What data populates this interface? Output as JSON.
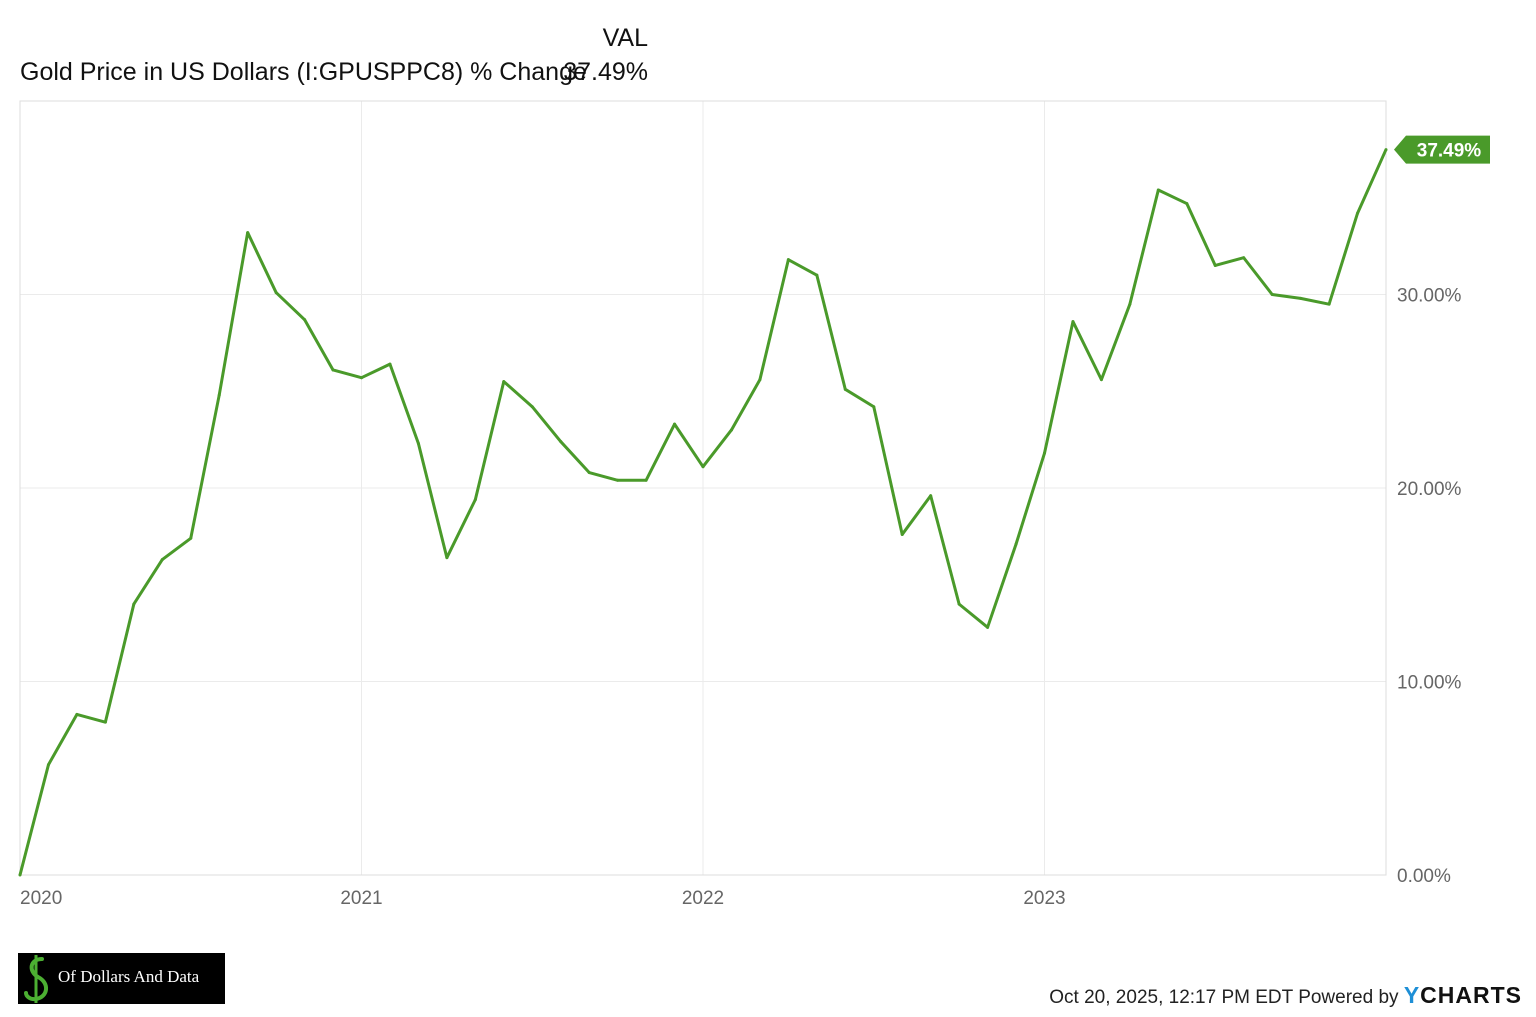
{
  "legend": {
    "column_header": "VAL",
    "series_name": "Gold Price in US Dollars (I:GPUSPPC8) % Change",
    "series_value": "37.49%"
  },
  "chart_data": {
    "type": "line",
    "title": "",
    "xlabel": "",
    "ylabel": "",
    "x_ticks": [
      "2020",
      "2021",
      "2022",
      "2023"
    ],
    "y_ticks": [
      "0.00%",
      "10.00%",
      "20.00%",
      "30.00%"
    ],
    "ylim": [
      0,
      40
    ],
    "xlim": [
      "2020-01",
      "2024-01"
    ],
    "grid": true,
    "y_axis_side": "right",
    "series": [
      {
        "name": "Gold Price in US Dollars (I:GPUSPPC8) % Change",
        "color": "#4a9a2a",
        "end_label": "37.49%",
        "x": [
          "2020-01",
          "2020-02",
          "2020-03",
          "2020-04",
          "2020-05",
          "2020-06",
          "2020-07",
          "2020-08",
          "2020-09",
          "2020-10",
          "2020-11",
          "2020-12",
          "2021-01",
          "2021-02",
          "2021-03",
          "2021-04",
          "2021-05",
          "2021-06",
          "2021-07",
          "2021-08",
          "2021-09",
          "2021-10",
          "2021-11",
          "2021-12",
          "2022-01",
          "2022-02",
          "2022-03",
          "2022-04",
          "2022-05",
          "2022-06",
          "2022-07",
          "2022-08",
          "2022-09",
          "2022-10",
          "2022-11",
          "2022-12",
          "2023-01",
          "2023-02",
          "2023-03",
          "2023-04",
          "2023-05",
          "2023-06",
          "2023-07",
          "2023-08",
          "2023-09",
          "2023-10",
          "2023-11",
          "2023-12",
          "2024-01"
        ],
        "values": [
          0.0,
          5.7,
          8.3,
          7.9,
          14.0,
          16.3,
          17.4,
          24.8,
          33.2,
          30.1,
          28.7,
          26.1,
          25.7,
          26.4,
          22.3,
          16.4,
          19.4,
          25.5,
          24.2,
          22.4,
          20.8,
          20.4,
          20.4,
          23.3,
          21.1,
          23.0,
          25.6,
          31.8,
          31.0,
          25.1,
          24.2,
          17.6,
          19.6,
          14.0,
          12.8,
          17.1,
          21.8,
          28.6,
          25.6,
          29.5,
          35.4,
          34.7,
          31.5,
          31.9,
          30.0,
          29.8,
          29.5,
          34.2,
          37.49
        ]
      }
    ]
  },
  "footer": {
    "timestamp": "Oct 20, 2025, 12:17 PM EDT",
    "powered_by": "Powered by",
    "brand_first": "Y",
    "brand_rest": "CHARTS",
    "logo_text": "Of Dollars And Data"
  },
  "colors": {
    "line": "#4a9a2a",
    "grid": "#ebebeb",
    "axis_text": "#666666",
    "logo_bg": "#000000",
    "logo_icon": "#4caf32",
    "brand_y": "#1e8fd6"
  }
}
